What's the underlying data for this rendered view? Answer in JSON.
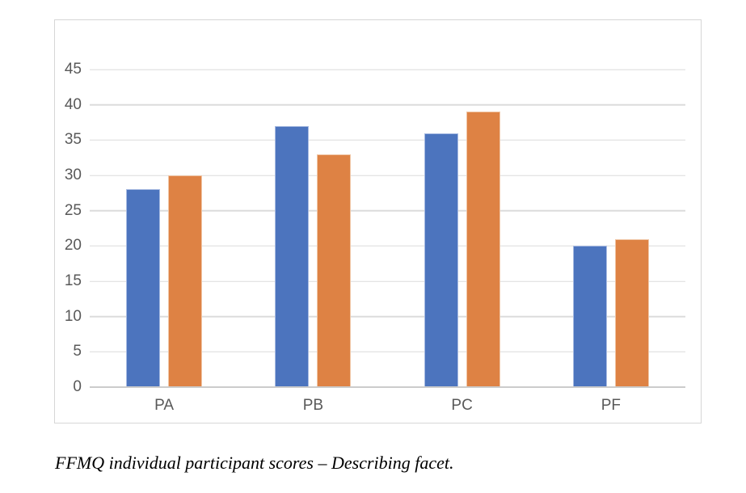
{
  "chart_data": {
    "type": "bar",
    "categories": [
      "PA",
      "PB",
      "PC",
      "PF"
    ],
    "series": [
      {
        "name": "blue",
        "color": "#4C74BE",
        "edge": "#A8BBE2",
        "values": [
          28,
          37,
          36,
          20
        ]
      },
      {
        "name": "orange",
        "color": "#DE8244",
        "edge": "#F0C6A6",
        "values": [
          30,
          33,
          39,
          21
        ]
      }
    ],
    "title": "",
    "xlabel": "",
    "ylabel": "",
    "ylim": [
      0,
      45
    ],
    "yticks": [
      0,
      5,
      10,
      15,
      20,
      25,
      30,
      35,
      40,
      45
    ],
    "grid": true,
    "legend": false
  },
  "caption": "FFMQ individual participant scores – Describing facet.",
  "colors": {
    "grid": "#DCDCDC",
    "axis_line": "#CCCCCC",
    "tick_label": "#595959",
    "chart_border": "#D6D6D6",
    "background": "#FFFFFF"
  }
}
